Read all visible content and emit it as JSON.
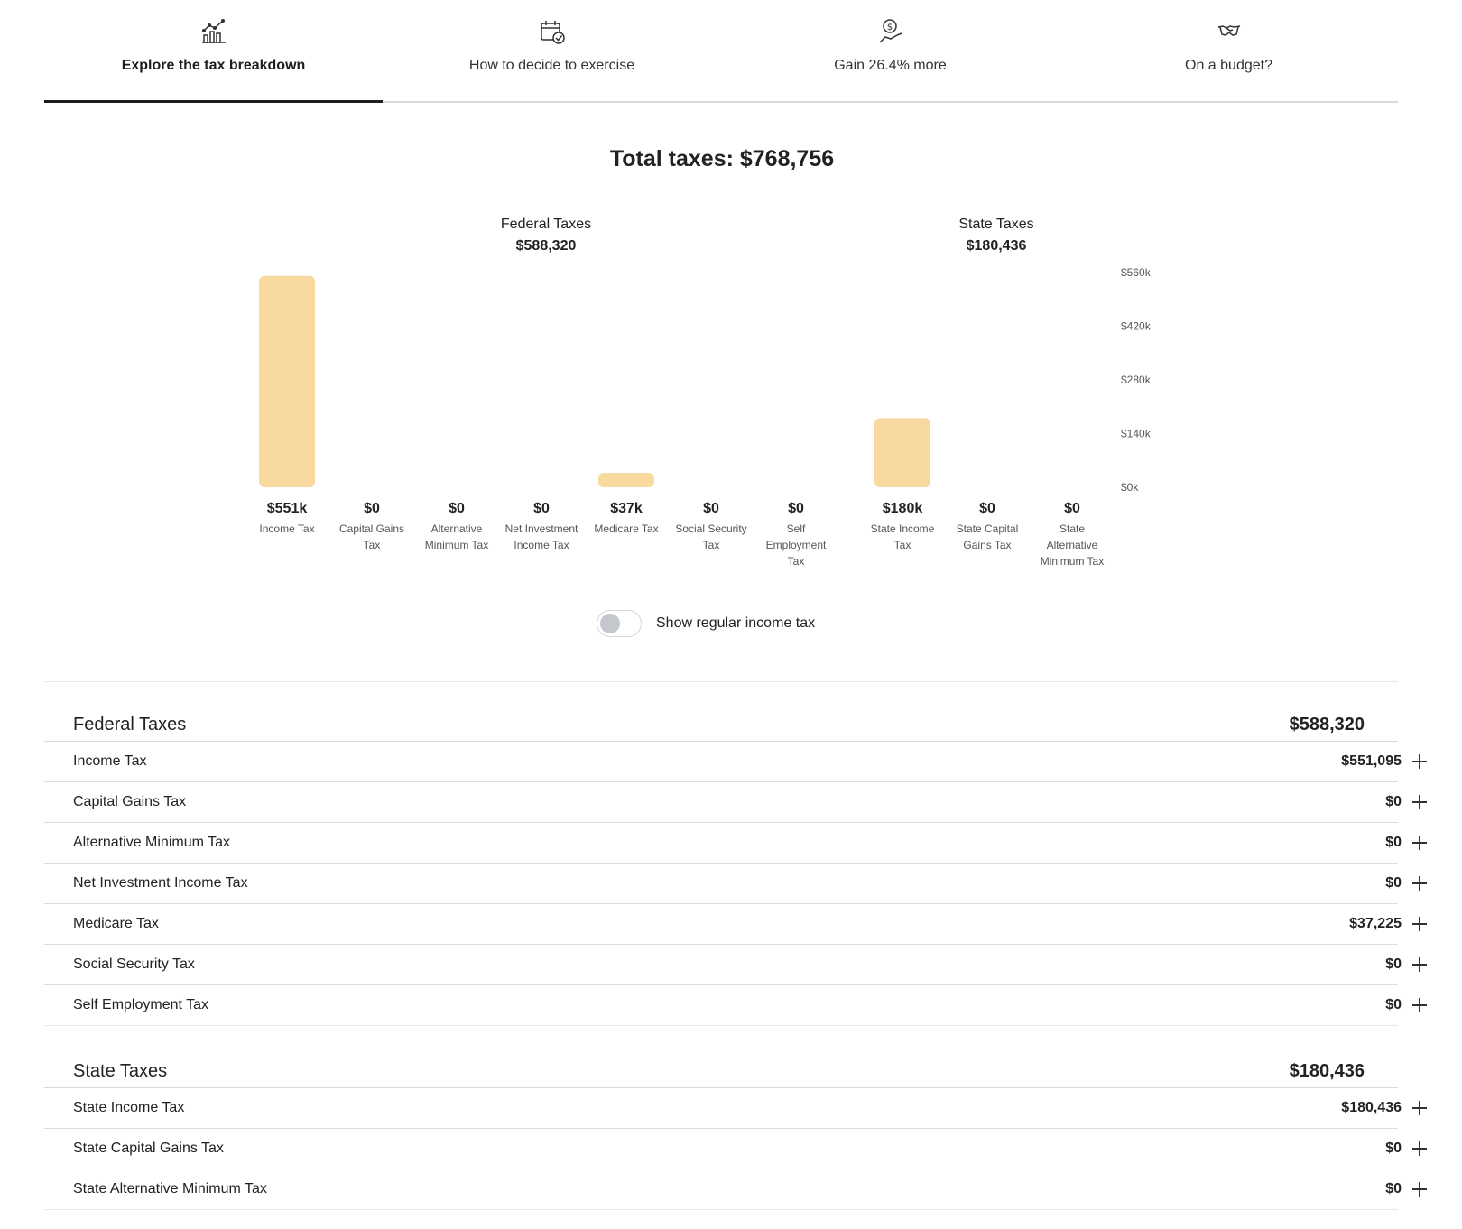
{
  "tabs": [
    {
      "label": "Explore the tax breakdown",
      "icon": "chart-icon",
      "active": true
    },
    {
      "label": "How to decide to exercise",
      "icon": "calendar-check-icon",
      "active": false
    },
    {
      "label": "Gain 26.4% more",
      "icon": "money-hand-icon",
      "active": false
    },
    {
      "label": "On a budget?",
      "icon": "handshake-icon",
      "active": false
    }
  ],
  "total_title": "Total taxes: $768,756",
  "groups": {
    "federal": {
      "name": "Federal Taxes",
      "total": "$588,320"
    },
    "state": {
      "name": "State Taxes",
      "total": "$180,436"
    }
  },
  "chart_data": {
    "type": "bar",
    "categories": [
      "Income Tax",
      "Capital Gains Tax",
      "Alternative Minimum Tax",
      "Net Investment Income Tax",
      "Medicare Tax",
      "Social Security Tax",
      "Self Employment Tax",
      "State Income Tax",
      "State Capital Gains Tax",
      "State Alternative Minimum Tax"
    ],
    "values": [
      551095,
      0,
      0,
      0,
      37225,
      0,
      0,
      180436,
      0,
      0
    ],
    "value_labels": [
      "$551k",
      "$0",
      "$0",
      "$0",
      "$37k",
      "$0",
      "$0",
      "$180k",
      "$0",
      "$0"
    ],
    "category_label_lines": [
      [
        "Income Tax"
      ],
      [
        "Capital Gains",
        "Tax"
      ],
      [
        "Alternative",
        "Minimum Tax"
      ],
      [
        "Net Investment",
        "Income Tax"
      ],
      [
        "Medicare Tax"
      ],
      [
        "Social Security",
        "Tax"
      ],
      [
        "Self",
        "Employment",
        "Tax"
      ],
      [
        "State Income",
        "Tax"
      ],
      [
        "State Capital",
        "Gains Tax"
      ],
      [
        "State",
        "Alternative",
        "Minimum Tax"
      ]
    ],
    "yticks": [
      "$0k",
      "$140k",
      "$280k",
      "$420k",
      "$560k"
    ],
    "ylim": [
      0,
      560000
    ],
    "bar_color": "#f8d9a0",
    "grid": false
  },
  "toggle": {
    "label": "Show regular income tax",
    "on": false
  },
  "federal_section": {
    "title": "Federal Taxes",
    "total": "$588,320",
    "rows": [
      {
        "name": "Income Tax",
        "value": "$551,095"
      },
      {
        "name": "Capital Gains Tax",
        "value": "$0"
      },
      {
        "name": "Alternative Minimum Tax",
        "value": "$0"
      },
      {
        "name": "Net Investment Income Tax",
        "value": "$0"
      },
      {
        "name": "Medicare Tax",
        "value": "$37,225"
      },
      {
        "name": "Social Security Tax",
        "value": "$0"
      },
      {
        "name": "Self Employment Tax",
        "value": "$0"
      }
    ]
  },
  "state_section": {
    "title": "State Taxes",
    "total": "$180,436",
    "rows": [
      {
        "name": "State Income Tax",
        "value": "$180,436"
      },
      {
        "name": "State Capital Gains Tax",
        "value": "$0"
      },
      {
        "name": "State Alternative Minimum Tax",
        "value": "$0"
      }
    ]
  }
}
